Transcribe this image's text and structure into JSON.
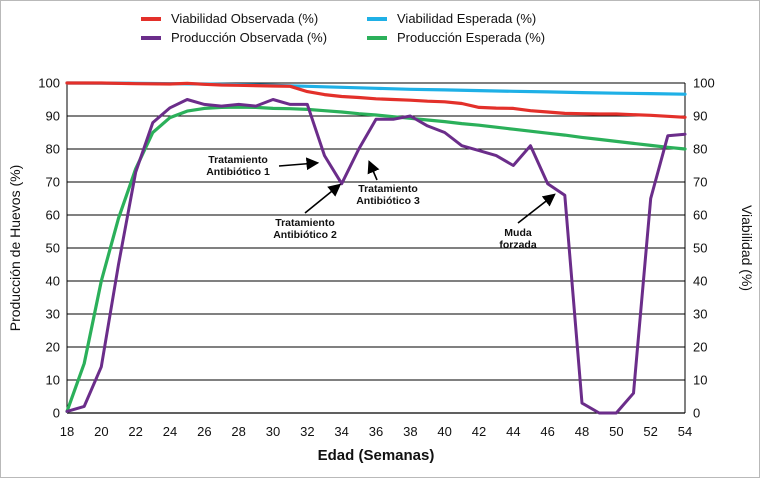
{
  "chart_data": {
    "type": "line",
    "xlabel": "Edad (Semanas)",
    "ylabel_left": "Producción de Huevos (%)",
    "ylabel_right": "Viabilidad (%)",
    "xlim": [
      18,
      54
    ],
    "ylim_left": [
      0,
      100
    ],
    "ylim_right": [
      0,
      100
    ],
    "x_ticks": [
      "18",
      "20",
      "22",
      "24",
      "26",
      "28",
      "30",
      "32",
      "34",
      "36",
      "38",
      "40",
      "42",
      "44",
      "46",
      "48",
      "50",
      "52",
      "54"
    ],
    "y_ticks": [
      "0",
      "10",
      "20",
      "30",
      "40",
      "50",
      "60",
      "70",
      "80",
      "90",
      "100"
    ],
    "grid": "horizontal",
    "legend": "top",
    "series": [
      {
        "name": "Viabilidad Observada (%)",
        "color": "#e3302a",
        "axis": "right",
        "points": [
          [
            18,
            100
          ],
          [
            20,
            100
          ],
          [
            22,
            99.8
          ],
          [
            24,
            99.7
          ],
          [
            25,
            99.9
          ],
          [
            26,
            99.6
          ],
          [
            27,
            99.4
          ],
          [
            28,
            99.3
          ],
          [
            30,
            99.1
          ],
          [
            31,
            99
          ],
          [
            32,
            97.4
          ],
          [
            33,
            96.5
          ],
          [
            34,
            95.9
          ],
          [
            35,
            95.6
          ],
          [
            36,
            95.2
          ],
          [
            37,
            95
          ],
          [
            38,
            94.8
          ],
          [
            39,
            94.5
          ],
          [
            40,
            94.3
          ],
          [
            41,
            93.8
          ],
          [
            42,
            92.6
          ],
          [
            43,
            92.4
          ],
          [
            44,
            92.3
          ],
          [
            45,
            91.6
          ],
          [
            46,
            91.2
          ],
          [
            47,
            90.8
          ],
          [
            48,
            90.7
          ],
          [
            49,
            90.6
          ],
          [
            50,
            90.6
          ],
          [
            51,
            90.4
          ],
          [
            52,
            90.2
          ],
          [
            53,
            89.9
          ],
          [
            54,
            89.6
          ]
        ]
      },
      {
        "name": "Viabilidad Esperada (%)",
        "color": "#1fb0e6",
        "axis": "right",
        "points": [
          [
            18,
            100
          ],
          [
            22,
            99.9
          ],
          [
            26,
            99.7
          ],
          [
            30,
            99.3
          ],
          [
            32,
            99
          ],
          [
            34,
            98.7
          ],
          [
            36,
            98.4
          ],
          [
            38,
            98.1
          ],
          [
            40,
            97.9
          ],
          [
            42,
            97.7
          ],
          [
            44,
            97.5
          ],
          [
            46,
            97.3
          ],
          [
            48,
            97.1
          ],
          [
            50,
            96.9
          ],
          [
            52,
            96.8
          ],
          [
            54,
            96.6
          ]
        ]
      },
      {
        "name": "Producción Observada (%)",
        "color": "#6b2d8a",
        "axis": "left",
        "points": [
          [
            18,
            0.5
          ],
          [
            19,
            2
          ],
          [
            20,
            14
          ],
          [
            21,
            45
          ],
          [
            22,
            73
          ],
          [
            23,
            88
          ],
          [
            24,
            92.5
          ],
          [
            25,
            95
          ],
          [
            26,
            93.5
          ],
          [
            27,
            93
          ],
          [
            28,
            93.5
          ],
          [
            29,
            93
          ],
          [
            30,
            95
          ],
          [
            31,
            93.5
          ],
          [
            32,
            93.5
          ],
          [
            33,
            78
          ],
          [
            34,
            69.5
          ],
          [
            35,
            80
          ],
          [
            36,
            89
          ],
          [
            37,
            89
          ],
          [
            38,
            90
          ],
          [
            39,
            87
          ],
          [
            40,
            85
          ],
          [
            41,
            81
          ],
          [
            42,
            79.5
          ],
          [
            43,
            78
          ],
          [
            44,
            75
          ],
          [
            45,
            81
          ],
          [
            46,
            69.5
          ],
          [
            47,
            66
          ],
          [
            48,
            3
          ],
          [
            49,
            0
          ],
          [
            50,
            0
          ],
          [
            51,
            6
          ],
          [
            52,
            65
          ],
          [
            53,
            84
          ],
          [
            54,
            84.5
          ]
        ]
      },
      {
        "name": "Producción Esperada (%)",
        "color": "#2bb05a",
        "axis": "left",
        "points": [
          [
            18,
            0.5
          ],
          [
            19,
            15
          ],
          [
            20,
            40
          ],
          [
            21,
            59
          ],
          [
            22,
            74
          ],
          [
            23,
            85
          ],
          [
            24,
            89.5
          ],
          [
            25,
            91.5
          ],
          [
            26,
            92.3
          ],
          [
            27,
            92.6
          ],
          [
            28,
            92.7
          ],
          [
            29,
            92.6
          ],
          [
            30,
            92.3
          ],
          [
            31,
            92.2
          ],
          [
            32,
            92
          ],
          [
            33,
            91.6
          ],
          [
            34,
            91.2
          ],
          [
            35,
            90.7
          ],
          [
            36,
            90.3
          ],
          [
            37,
            89.8
          ],
          [
            38,
            89.3
          ],
          [
            39,
            88.8
          ],
          [
            40,
            88.3
          ],
          [
            41,
            87.7
          ],
          [
            42,
            87.2
          ],
          [
            43,
            86.6
          ],
          [
            44,
            86
          ],
          [
            45,
            85.4
          ],
          [
            46,
            84.8
          ],
          [
            47,
            84.2
          ],
          [
            48,
            83.5
          ],
          [
            49,
            82.9
          ],
          [
            50,
            82.3
          ],
          [
            51,
            81.7
          ],
          [
            52,
            81.1
          ],
          [
            53,
            80.5
          ],
          [
            54,
            80
          ]
        ]
      }
    ],
    "annotations": [
      {
        "lines": [
          "Tratamiento",
          "Antibiótico 1"
        ],
        "arrow_to": [
          32.6,
          75.8
        ]
      },
      {
        "lines": [
          "Tratamiento",
          "Antibiótico 2"
        ],
        "arrow_to": [
          33.9,
          69.2
        ]
      },
      {
        "lines": [
          "Tratamiento",
          "Antibiótico 3"
        ],
        "arrow_to": [
          35.6,
          76.2
        ]
      },
      {
        "lines": [
          "Muda",
          "forzada"
        ],
        "arrow_to": [
          46.4,
          66.2
        ]
      }
    ]
  }
}
